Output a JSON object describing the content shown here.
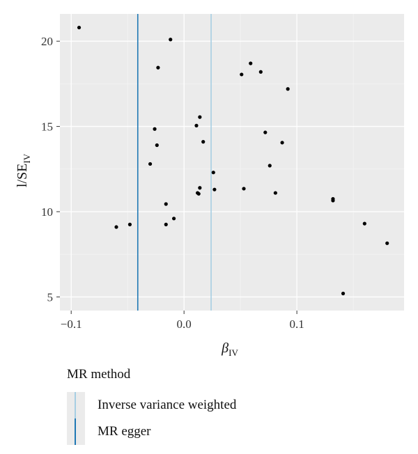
{
  "chart_data": {
    "type": "scatter",
    "xlabel_main": "β",
    "xlabel_sub": "IV",
    "ylabel_main": "l/SE",
    "ylabel_sub": "IV",
    "xlim": [
      -0.11,
      0.195
    ],
    "ylim": [
      4.2,
      21.6
    ],
    "x_ticks": [
      {
        "value": -0.1,
        "label": "−0.1"
      },
      {
        "value": 0.0,
        "label": "0.0"
      },
      {
        "value": 0.1,
        "label": "0.1"
      }
    ],
    "y_ticks": [
      {
        "value": 5,
        "label": "5"
      },
      {
        "value": 10,
        "label": "10"
      },
      {
        "value": 15,
        "label": "15"
      },
      {
        "value": 20,
        "label": "20"
      }
    ],
    "grid": true,
    "background": "#ebebeb",
    "points": [
      {
        "x": -0.093,
        "y": 20.8
      },
      {
        "x": -0.012,
        "y": 20.1
      },
      {
        "x": -0.023,
        "y": 18.45
      },
      {
        "x": 0.059,
        "y": 18.7
      },
      {
        "x": 0.068,
        "y": 18.2
      },
      {
        "x": 0.051,
        "y": 18.05
      },
      {
        "x": 0.092,
        "y": 17.2
      },
      {
        "x": 0.014,
        "y": 15.55
      },
      {
        "x": 0.011,
        "y": 15.05
      },
      {
        "x": -0.026,
        "y": 14.85
      },
      {
        "x": 0.072,
        "y": 14.65
      },
      {
        "x": 0.017,
        "y": 14.1
      },
      {
        "x": 0.087,
        "y": 14.05
      },
      {
        "x": -0.024,
        "y": 13.9
      },
      {
        "x": -0.03,
        "y": 12.8
      },
      {
        "x": 0.076,
        "y": 12.7
      },
      {
        "x": 0.026,
        "y": 12.3
      },
      {
        "x": 0.014,
        "y": 11.4
      },
      {
        "x": 0.053,
        "y": 11.35
      },
      {
        "x": 0.027,
        "y": 11.3
      },
      {
        "x": 0.012,
        "y": 11.1
      },
      {
        "x": 0.013,
        "y": 11.05
      },
      {
        "x": 0.081,
        "y": 11.1
      },
      {
        "x": 0.132,
        "y": 10.75
      },
      {
        "x": 0.132,
        "y": 10.65
      },
      {
        "x": -0.016,
        "y": 10.45
      },
      {
        "x": -0.009,
        "y": 9.6
      },
      {
        "x": -0.016,
        "y": 9.25
      },
      {
        "x": -0.048,
        "y": 9.25
      },
      {
        "x": -0.06,
        "y": 9.1
      },
      {
        "x": 0.16,
        "y": 9.3
      },
      {
        "x": 0.18,
        "y": 8.15
      },
      {
        "x": 0.141,
        "y": 5.2
      }
    ],
    "vlines": [
      {
        "name": "Inverse variance weighted",
        "x": 0.024,
        "color": "#a6cee3"
      },
      {
        "name": "MR egger",
        "x": -0.041,
        "color": "#1f78b4"
      }
    ]
  },
  "legend": {
    "title": "MR method",
    "items": [
      {
        "label": "Inverse variance weighted",
        "color": "#a6cee3"
      },
      {
        "label": "MR egger",
        "color": "#1f78b4"
      }
    ]
  }
}
